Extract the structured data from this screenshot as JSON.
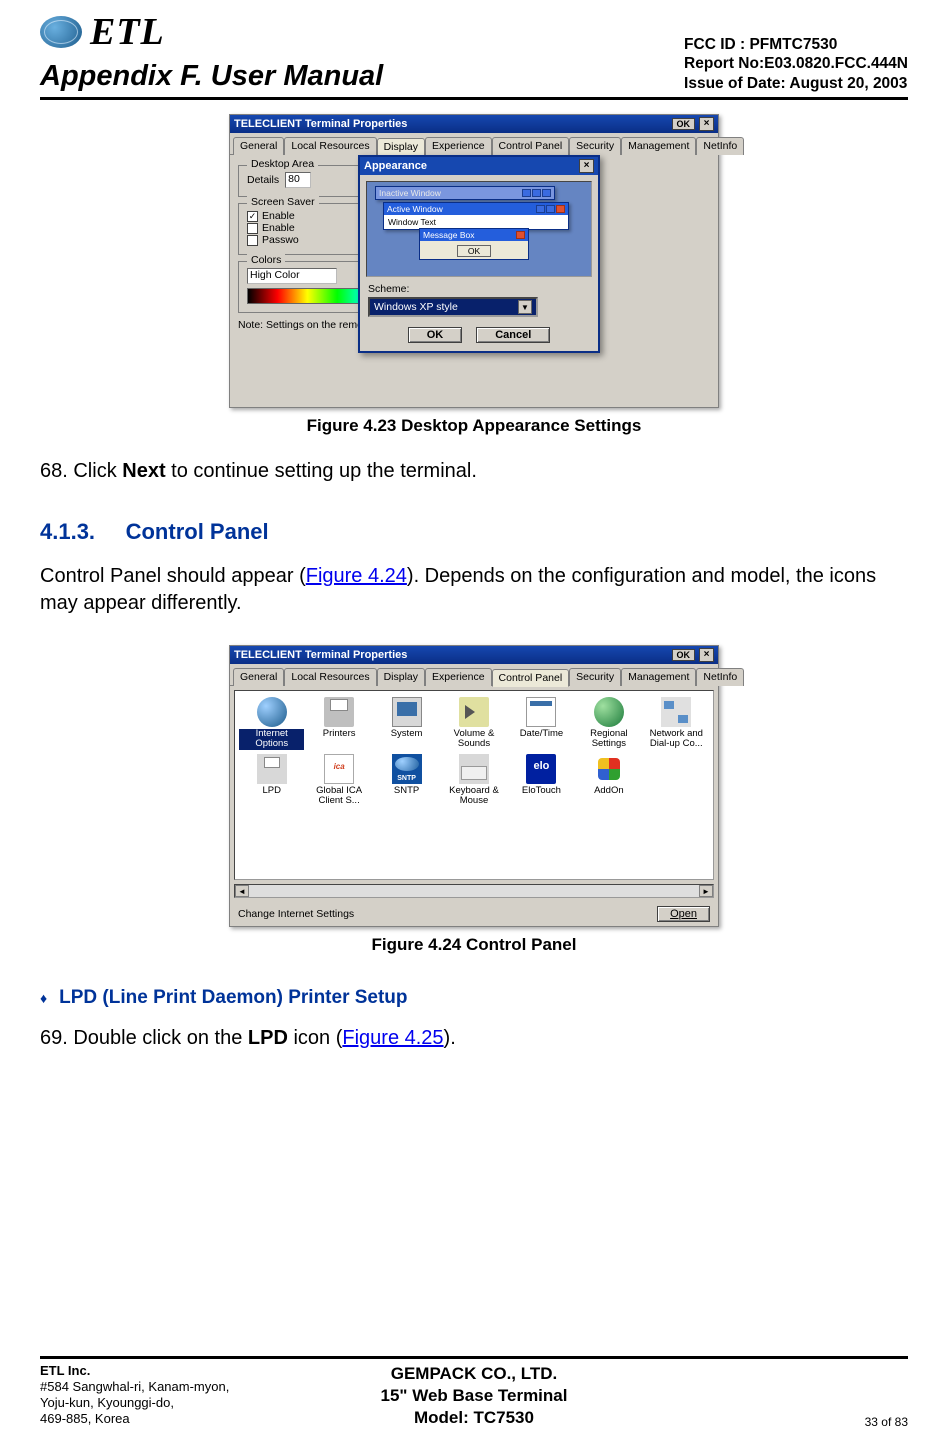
{
  "header": {
    "logo_text": "ETL",
    "title": "Appendix F. User Manual",
    "fcc": "FCC ID : PFMTC7530",
    "report": "Report No:E03.0820.FCC.444N",
    "issue": "Issue of Date:  August 20, 2003"
  },
  "fig1": {
    "win_title": "TELECLIENT Terminal Properties",
    "ok_label": "OK",
    "close_label": "×",
    "tabs": [
      "General",
      "Local Resources",
      "Display",
      "Experience",
      "Control Panel",
      "Security",
      "Management",
      "NetInfo"
    ],
    "active_tab": "Display",
    "group_desktop": "Desktop Area",
    "details_label": "Details",
    "details_value": "80",
    "group_saver": "Screen Saver",
    "saver_rows": [
      {
        "checked": true,
        "label": "Enable"
      },
      {
        "checked": false,
        "label": "Enable"
      },
      {
        "checked": false,
        "label": "Passwo"
      }
    ],
    "group_colors": "Colors",
    "colors_value": "High Color",
    "note": "Note: Settings on the remote computer might override this setting",
    "modal": {
      "title": "Appearance",
      "inactive_title": "Inactive Window",
      "active_title": "Active Window",
      "window_text": "Window Text",
      "msgbox_title": "Message Box",
      "msgbox_ok": "OK",
      "scheme_label": "Scheme:",
      "scheme_value": "Windows XP style",
      "ok": "OK",
      "cancel": "Cancel"
    },
    "caption": "Figure 4.23       Desktop Appearance Settings"
  },
  "para1_pre": "68. Click ",
  "para1_bold": "Next",
  "para1_post": " to continue setting up the terminal.",
  "sec_413_num": "4.1.3.",
  "sec_413_title": "Control Panel",
  "para2_pre": "Control Panel should appear (",
  "para2_link": "Figure 4.24",
  "para2_post": ").  Depends on the configuration and model, the icons may appear differently.",
  "fig2": {
    "win_title": "TELECLIENT Terminal Properties",
    "ok_label": "OK",
    "close_label": "×",
    "tabs": [
      "General",
      "Local Resources",
      "Display",
      "Experience",
      "Control Panel",
      "Security",
      "Management",
      "NetInfo"
    ],
    "active_tab": "Control Panel",
    "items": [
      {
        "label": "Internet Options",
        "cls": "ic-globe",
        "selected": true
      },
      {
        "label": "Printers",
        "cls": "ic-printer"
      },
      {
        "label": "System",
        "cls": "ic-system"
      },
      {
        "label": "Volume & Sounds",
        "cls": "ic-vol"
      },
      {
        "label": "Date/Time",
        "cls": "ic-date"
      },
      {
        "label": "Regional Settings",
        "cls": "ic-reg"
      },
      {
        "label": "Network and Dial-up Co...",
        "cls": "ic-net"
      },
      {
        "label": "LPD",
        "cls": "ic-lpd"
      },
      {
        "label": "Global ICA Client S...",
        "cls": "ic-ica"
      },
      {
        "label": "SNTP",
        "cls": "ic-sntp"
      },
      {
        "label": "Keyboard & Mouse",
        "cls": "ic-kbd"
      },
      {
        "label": "EloTouch",
        "cls": "ic-elo"
      },
      {
        "label": "AddOn",
        "cls": "ic-addon"
      }
    ],
    "status": "Change Internet Settings",
    "open": "Open",
    "caption": "Figure 4.24       Control Panel"
  },
  "sec_lpd": "LPD (Line Print Daemon) Printer Setup",
  "para3_pre": "69. Double click on the ",
  "para3_bold": "LPD",
  "para3_mid": " icon (",
  "para3_link": "Figure 4.25",
  "para3_post": ").",
  "footer": {
    "company": "ETL Inc.",
    "addr1": "#584 Sangwhal-ri, Kanam-myon,",
    "addr2": "Yoju-kun, Kyounggi-do,",
    "addr3": "469-885, Korea",
    "c1": "GEMPACK CO., LTD.",
    "c2": "15\" Web Base Terminal",
    "c3": "Model: TC7530",
    "page": "33 of  83"
  },
  "colors": {
    "heading": "#003399",
    "link": "#0000ee",
    "titlebar": "#1648b0",
    "win_bg": "#d4d0c8"
  }
}
